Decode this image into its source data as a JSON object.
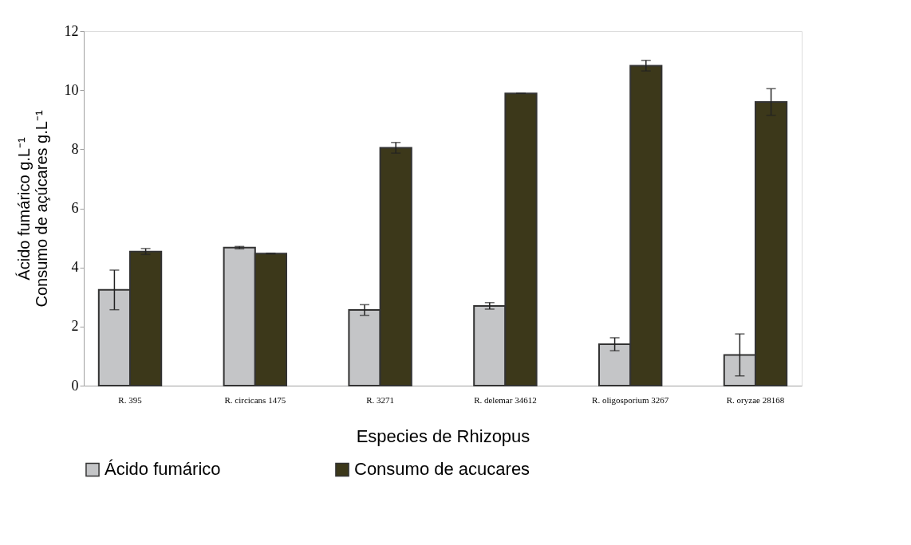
{
  "chart_data": {
    "type": "bar",
    "xlabel": "Especies de Rhizopus",
    "ylabel": "Ácido fumárico g.L⁻¹\nConsumo de açúcares g.L⁻¹",
    "categories": [
      "R. 395",
      "R. circicans 1475",
      "R. 3271",
      "R. delemar 34612",
      "R. oligosporium 3267",
      "R. oryzae 28168"
    ],
    "series": [
      {
        "name": "Ácido fumárico",
        "color": "#c4c5c7",
        "values": [
          3.24,
          4.67,
          2.56,
          2.7,
          1.4,
          1.04
        ],
        "errors": [
          0.67,
          0.04,
          0.18,
          0.11,
          0.22,
          0.71
        ]
      },
      {
        "name": "Consumo de acucares",
        "color": "#3c381a",
        "values": [
          4.54,
          4.47,
          8.05,
          9.89,
          10.83,
          9.6
        ],
        "errors": [
          0.1,
          0.01,
          0.18,
          0,
          0.18,
          0.45
        ]
      }
    ],
    "ylim": [
      0,
      12
    ],
    "yticks": [
      0,
      2,
      4,
      6,
      8,
      10,
      12
    ],
    "grid": false,
    "legend": "bottom"
  }
}
